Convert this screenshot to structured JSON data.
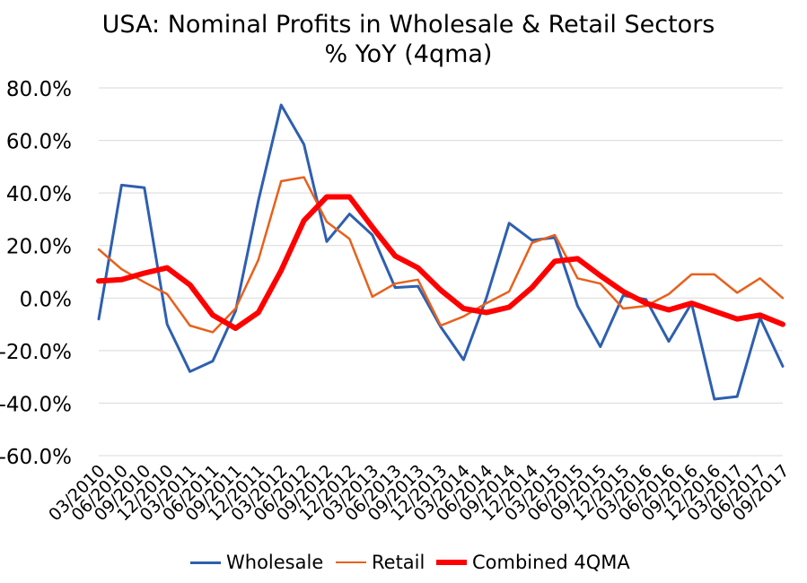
{
  "chart_data": {
    "type": "line",
    "title": "USA: Nominal Profits in Wholesale & Retail Sectors",
    "subtitle": "% YoY (4qma)",
    "xlabel": "",
    "ylabel": "",
    "ylim": [
      -60,
      80
    ],
    "y_ticks": [
      "80.0%",
      "60.0%",
      "40.0%",
      "20.0%",
      "0.0%",
      "-20.0%",
      "-40.0%",
      "-60.0%"
    ],
    "y_tick_values": [
      80,
      60,
      40,
      20,
      0,
      -20,
      -40,
      -60
    ],
    "grid": true,
    "legend_position": "bottom",
    "categories": [
      "03/2010",
      "06/2010",
      "09/2010",
      "12/2010",
      "03/2011",
      "06/2011",
      "09/2011",
      "12/2011",
      "03/2012",
      "06/2012",
      "09/2012",
      "12/2012",
      "03/2013",
      "06/2013",
      "09/2013",
      "12/2013",
      "03/2014",
      "06/2014",
      "09/2014",
      "12/2014",
      "03/2015",
      "06/2015",
      "09/2015",
      "12/2015",
      "03/2016",
      "06/2016",
      "09/2016",
      "12/2016",
      "03/2017",
      "06/2017",
      "09/2017"
    ],
    "series": [
      {
        "name": "Wholesale",
        "color": "#2E5FB0",
        "width": 3,
        "values": [
          -8,
          43,
          42,
          -10,
          -28,
          -24,
          -5,
          37,
          73.5,
          58.5,
          21.5,
          32,
          24,
          4,
          4.5,
          -11,
          -23.5,
          0,
          28.5,
          22,
          23,
          -3,
          -18.5,
          1,
          -0.5,
          -16.5,
          -2,
          -38.5,
          -37.5,
          -7.5,
          -26
        ]
      },
      {
        "name": "Retail",
        "color": "#E8601C",
        "width": 2.5,
        "values": [
          18.5,
          11,
          6,
          1.5,
          -10.5,
          -13,
          -4,
          14.5,
          44.5,
          46,
          29,
          22.5,
          0.5,
          5.5,
          7,
          -10.5,
          -7,
          -2,
          2.5,
          21,
          24,
          7.5,
          5.5,
          -4,
          -3,
          1.5,
          9,
          9,
          2,
          7.5,
          0
        ]
      },
      {
        "name": "Combined 4QMA",
        "color": "#FF0000",
        "width": 6,
        "values": [
          6.5,
          7,
          9.5,
          11.5,
          5,
          -6.5,
          -11.5,
          -5.5,
          10.5,
          29.5,
          38.5,
          38.5,
          27,
          16,
          11.5,
          3,
          -4,
          -5.5,
          -3.5,
          4,
          14,
          15,
          8.5,
          2.5,
          -2,
          -4.5,
          -2,
          -5,
          -8,
          -6.5,
          -10
        ]
      }
    ]
  }
}
